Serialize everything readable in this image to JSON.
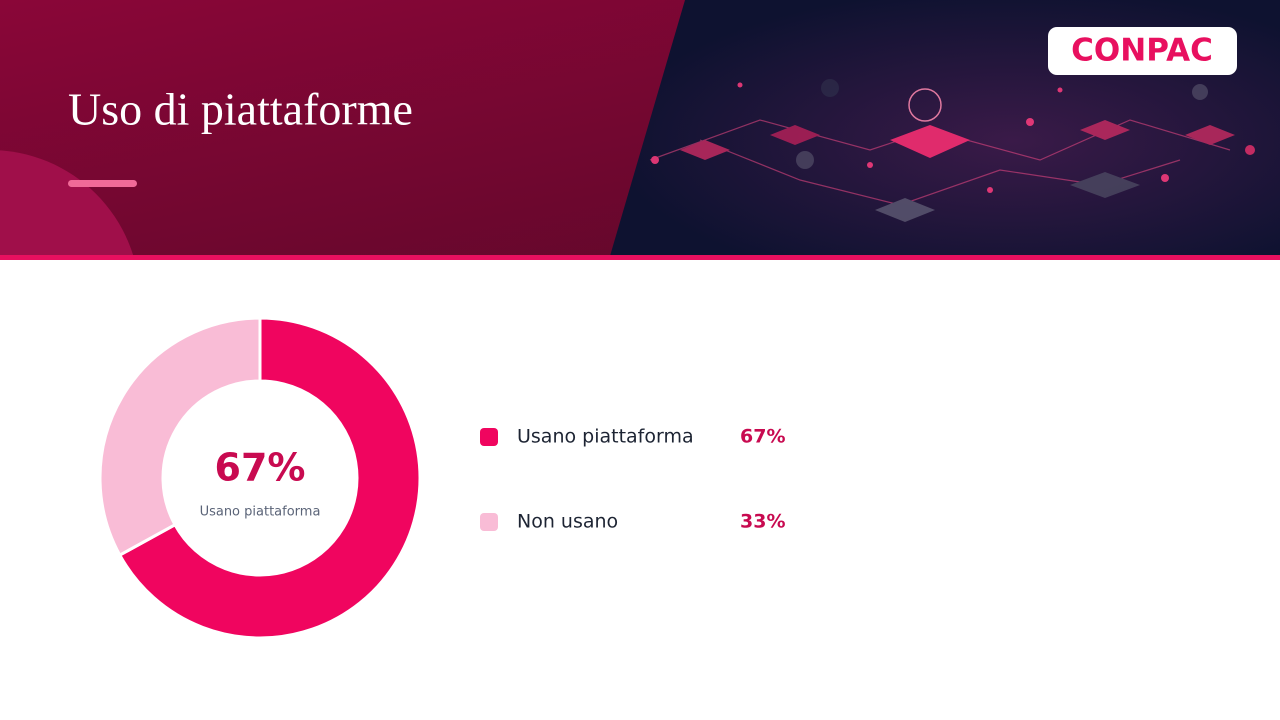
{
  "logo": "CONPAC",
  "chart_data": {
    "type": "donut",
    "title": "Uso di piattaforme",
    "categories": [
      "Usano piattaforma",
      "Non usano"
    ],
    "values": [
      67,
      33
    ],
    "value_labels": [
      "67%",
      "33%"
    ],
    "colors": [
      "#f0055f",
      "#f9bcd6"
    ]
  }
}
